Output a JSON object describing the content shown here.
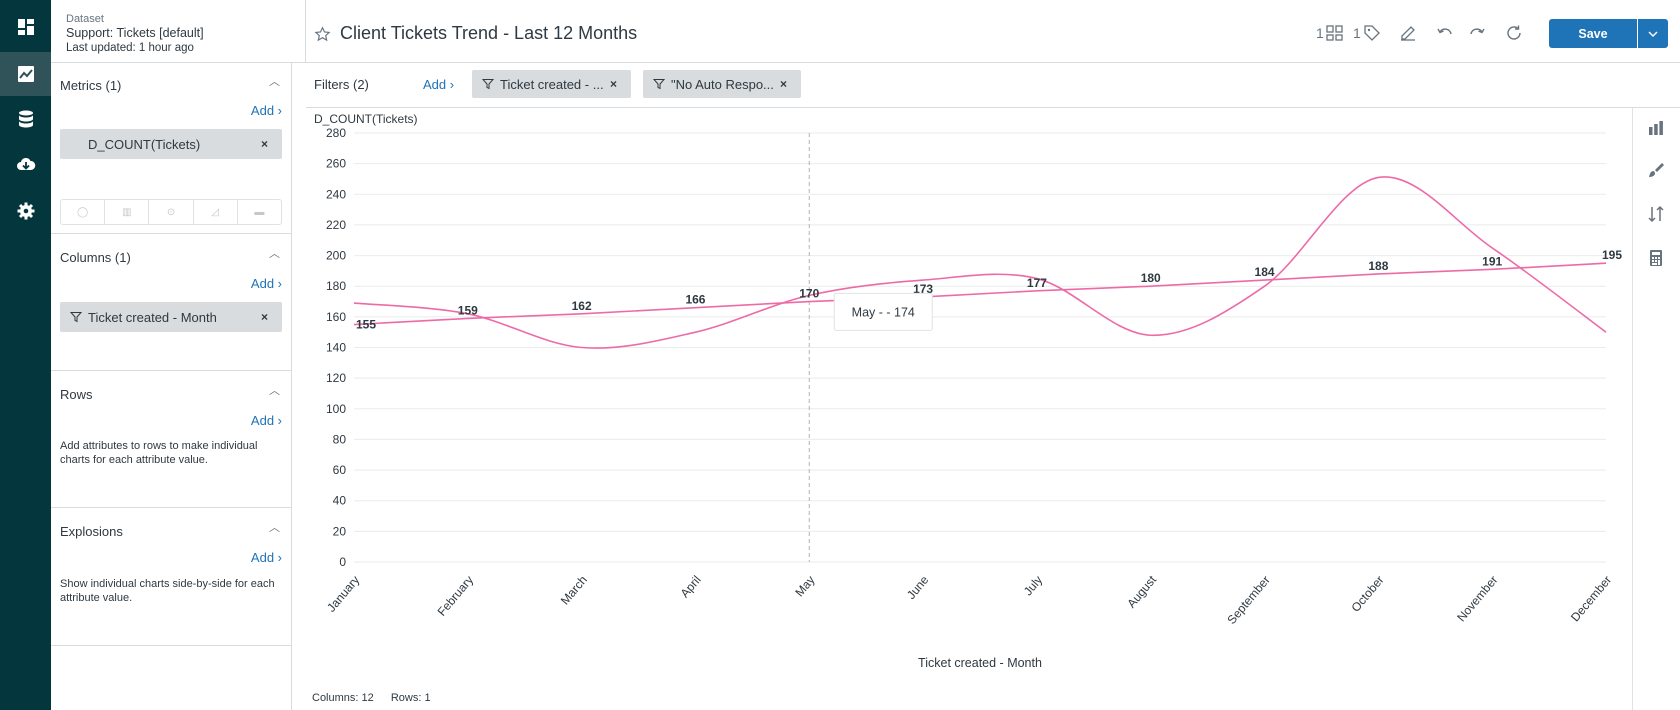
{
  "nav": {
    "items": [
      "dashboard-icon",
      "chart-icon",
      "database-icon",
      "download-icon",
      "gear-icon"
    ],
    "active": 1
  },
  "dataset": {
    "label": "Dataset",
    "name": "Support: Tickets [default]",
    "updated": "Last updated: 1 hour ago"
  },
  "panel": {
    "metrics": {
      "title": "Metrics (1)",
      "add": "Add ›",
      "pill": "D_COUNT(Tickets)"
    },
    "columns": {
      "title": "Columns (1)",
      "add": "Add ›",
      "pill": "Ticket created - Month"
    },
    "rows": {
      "title": "Rows",
      "add": "Add ›",
      "help": "Add attributes to rows to make individual charts for each attribute value."
    },
    "explosions": {
      "title": "Explosions",
      "add": "Add ›",
      "help": "Show individual charts side-by-side for each attribute value."
    }
  },
  "toolbar": {
    "title": "Client Tickets Trend - Last 12 Months",
    "views_count": "1",
    "tags_count": "1",
    "save_label": "Save"
  },
  "filters": {
    "label": "Filters (2)",
    "add": "Add ›",
    "items": [
      "Ticket created - ...",
      "\"No Auto Respo..."
    ]
  },
  "tooltip": {
    "text": "May - - 174"
  },
  "footer": {
    "columns": "Columns: 12",
    "rows": "Rows: 1"
  },
  "colors": {
    "line": "#ee6aa7",
    "accent": "#1f73b7",
    "rail": "#03363d"
  },
  "chart_data": {
    "type": "line",
    "ylabel": "D_COUNT(Tickets)",
    "xlabel": "Ticket created - Month",
    "ylim": [
      0,
      280
    ],
    "yticks": [
      0,
      20,
      40,
      60,
      80,
      100,
      120,
      140,
      160,
      180,
      200,
      220,
      240,
      260,
      280
    ],
    "categories": [
      "January",
      "February",
      "March",
      "April",
      "May",
      "June",
      "July",
      "August",
      "September",
      "October",
      "November",
      "December"
    ],
    "series": [
      {
        "values": [
          169,
          162,
          140,
          150,
          174,
          184,
          185,
          148,
          180,
          251,
          205,
          150
        ]
      },
      {
        "values": [
          155,
          159,
          162,
          166,
          170,
          173,
          177,
          180,
          184,
          188,
          191,
          195
        ],
        "labels": [
          "155",
          "159",
          "162",
          "166",
          "170",
          "173",
          "177",
          "180",
          "184",
          "188",
          "191",
          "195"
        ]
      }
    ],
    "grid": true
  }
}
